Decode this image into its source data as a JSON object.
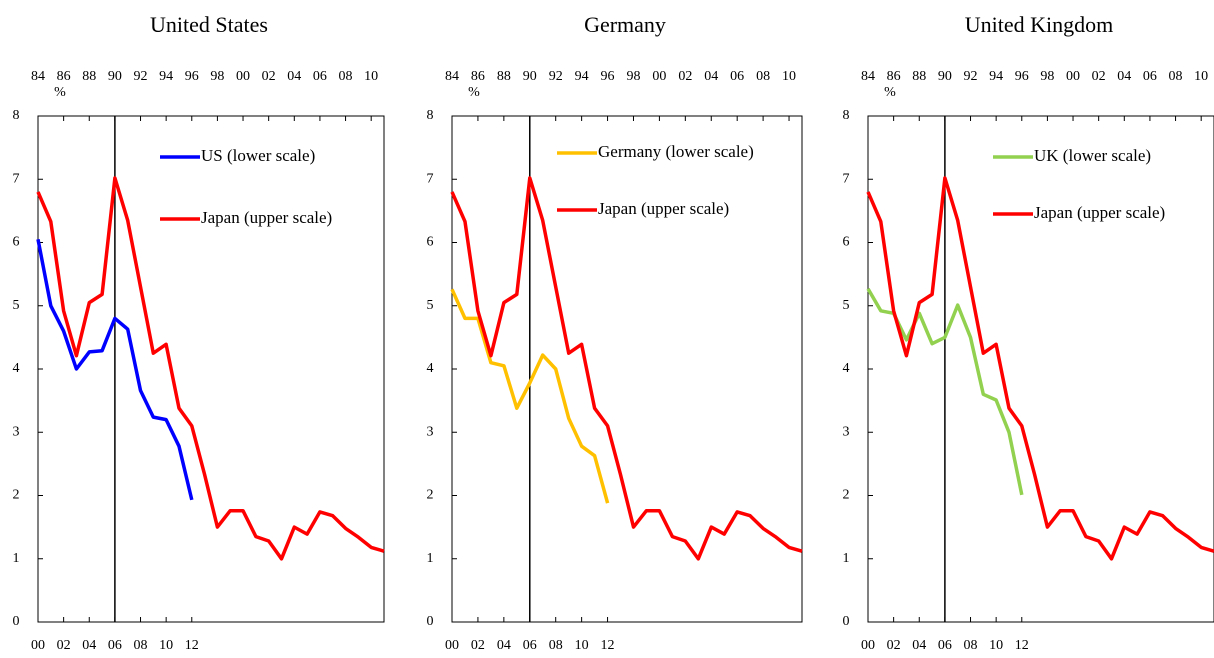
{
  "chart_data": [
    {
      "type": "line",
      "title": "United States",
      "y_unit": "%",
      "ylim": [
        0,
        8
      ],
      "yticks": [
        0,
        1,
        2,
        3,
        4,
        5,
        6,
        7,
        8
      ],
      "xlim": [
        2000,
        2027
      ],
      "xticks": [
        {
          "value": 2000,
          "label": "00"
        },
        {
          "value": 2002,
          "label": "02"
        },
        {
          "value": 2004,
          "label": "04"
        },
        {
          "value": 2006,
          "label": "06"
        },
        {
          "value": 2008,
          "label": "08"
        },
        {
          "value": 2010,
          "label": "10"
        },
        {
          "value": 2012,
          "label": "12"
        }
      ],
      "x2lim": [
        1984,
        2011
      ],
      "x2ticks": [
        {
          "value": 1984,
          "label": "84"
        },
        {
          "value": 1986,
          "label": "86"
        },
        {
          "value": 1988,
          "label": "88"
        },
        {
          "value": 1990,
          "label": "90"
        },
        {
          "value": 1992,
          "label": "92"
        },
        {
          "value": 1994,
          "label": "94"
        },
        {
          "value": 1996,
          "label": "96"
        },
        {
          "value": 1998,
          "label": "98"
        },
        {
          "value": 2000,
          "label": "00"
        },
        {
          "value": 2002,
          "label": "02"
        },
        {
          "value": 2004,
          "label": "04"
        },
        {
          "value": 2006,
          "label": "06"
        },
        {
          "value": 2008,
          "label": "08"
        },
        {
          "value": 2010,
          "label": "10"
        }
      ],
      "marker_line": 1990,
      "series": [
        {
          "name": "US (lower scale)",
          "color": "#0000ff",
          "x": [
            2000,
            2001,
            2002,
            2003,
            2004,
            2005,
            2006,
            2007,
            2008,
            2009,
            2010,
            2011,
            2012
          ],
          "values": [
            6.05,
            5.0,
            4.6,
            4.0,
            4.27,
            4.29,
            4.8,
            4.63,
            3.66,
            3.24,
            3.2,
            2.78,
            1.93
          ]
        },
        {
          "name": "Japan (upper scale)",
          "color": "#ff0000",
          "axis": "x2",
          "x": [
            1984,
            1985,
            1986,
            1987,
            1988,
            1989,
            1990,
            1991,
            1992,
            1993,
            1994,
            1995,
            1996,
            1997,
            1998,
            1999,
            2000,
            2001,
            2002,
            2003,
            2004,
            2005,
            2006,
            2007,
            2008,
            2009,
            2010,
            2011
          ],
          "values": [
            6.8,
            6.33,
            4.92,
            4.21,
            5.05,
            5.18,
            7.02,
            6.35,
            5.3,
            4.25,
            4.39,
            3.38,
            3.1,
            2.33,
            1.5,
            1.76,
            1.76,
            1.35,
            1.28,
            1.0,
            1.5,
            1.39,
            1.74,
            1.68,
            1.48,
            1.34,
            1.18,
            1.12
          ]
        }
      ]
    },
    {
      "type": "line",
      "title": "Germany",
      "y_unit": "%",
      "ylim": [
        0,
        8
      ],
      "yticks": [
        0,
        1,
        2,
        3,
        4,
        5,
        6,
        7,
        8
      ],
      "xlim": [
        2000,
        2027
      ],
      "xticks": [
        {
          "value": 2000,
          "label": "00"
        },
        {
          "value": 2002,
          "label": "02"
        },
        {
          "value": 2004,
          "label": "04"
        },
        {
          "value": 2006,
          "label": "06"
        },
        {
          "value": 2008,
          "label": "08"
        },
        {
          "value": 2010,
          "label": "10"
        },
        {
          "value": 2012,
          "label": "12"
        }
      ],
      "x2lim": [
        1984,
        2011
      ],
      "x2ticks": [
        {
          "value": 1984,
          "label": "84"
        },
        {
          "value": 1986,
          "label": "86"
        },
        {
          "value": 1988,
          "label": "88"
        },
        {
          "value": 1990,
          "label": "90"
        },
        {
          "value": 1992,
          "label": "92"
        },
        {
          "value": 1994,
          "label": "94"
        },
        {
          "value": 1996,
          "label": "96"
        },
        {
          "value": 1998,
          "label": "98"
        },
        {
          "value": 2000,
          "label": "00"
        },
        {
          "value": 2002,
          "label": "02"
        },
        {
          "value": 2004,
          "label": "04"
        },
        {
          "value": 2006,
          "label": "06"
        },
        {
          "value": 2008,
          "label": "08"
        },
        {
          "value": 2010,
          "label": "10"
        }
      ],
      "marker_line": 1990,
      "series": [
        {
          "name": "Germany (lower scale)",
          "color": "#ffc000",
          "x": [
            2000,
            2001,
            2002,
            2003,
            2004,
            2005,
            2006,
            2007,
            2008,
            2009,
            2010,
            2011,
            2012
          ],
          "values": [
            5.26,
            4.8,
            4.8,
            4.1,
            4.05,
            3.38,
            3.78,
            4.22,
            4.0,
            3.22,
            2.78,
            2.63,
            1.88
          ]
        },
        {
          "name": "Japan (upper scale)",
          "color": "#ff0000",
          "axis": "x2",
          "x": [
            1984,
            1985,
            1986,
            1987,
            1988,
            1989,
            1990,
            1991,
            1992,
            1993,
            1994,
            1995,
            1996,
            1997,
            1998,
            1999,
            2000,
            2001,
            2002,
            2003,
            2004,
            2005,
            2006,
            2007,
            2008,
            2009,
            2010,
            2011
          ],
          "values": [
            6.8,
            6.33,
            4.92,
            4.21,
            5.05,
            5.18,
            7.02,
            6.35,
            5.3,
            4.25,
            4.39,
            3.38,
            3.1,
            2.33,
            1.5,
            1.76,
            1.76,
            1.35,
            1.28,
            1.0,
            1.5,
            1.39,
            1.74,
            1.68,
            1.48,
            1.34,
            1.18,
            1.12
          ]
        }
      ]
    },
    {
      "type": "line",
      "title": "United Kingdom",
      "y_unit": "%",
      "ylim": [
        0,
        8
      ],
      "yticks": [
        0,
        1,
        2,
        3,
        4,
        5,
        6,
        7,
        8
      ],
      "xlim": [
        2000,
        2027
      ],
      "xticks": [
        {
          "value": 2000,
          "label": "00"
        },
        {
          "value": 2002,
          "label": "02"
        },
        {
          "value": 2004,
          "label": "04"
        },
        {
          "value": 2006,
          "label": "06"
        },
        {
          "value": 2008,
          "label": "08"
        },
        {
          "value": 2010,
          "label": "10"
        },
        {
          "value": 2012,
          "label": "12"
        }
      ],
      "x2lim": [
        1984,
        2011
      ],
      "x2ticks": [
        {
          "value": 1984,
          "label": "84"
        },
        {
          "value": 1986,
          "label": "86"
        },
        {
          "value": 1988,
          "label": "88"
        },
        {
          "value": 1990,
          "label": "90"
        },
        {
          "value": 1992,
          "label": "92"
        },
        {
          "value": 1994,
          "label": "94"
        },
        {
          "value": 1996,
          "label": "96"
        },
        {
          "value": 1998,
          "label": "98"
        },
        {
          "value": 2000,
          "label": "00"
        },
        {
          "value": 2002,
          "label": "02"
        },
        {
          "value": 2004,
          "label": "04"
        },
        {
          "value": 2006,
          "label": "06"
        },
        {
          "value": 2008,
          "label": "08"
        },
        {
          "value": 2010,
          "label": "10"
        }
      ],
      "marker_line": 1990,
      "series": [
        {
          "name": "UK (lower scale)",
          "color": "#92d050",
          "x": [
            2000,
            2001,
            2002,
            2003,
            2004,
            2005,
            2006,
            2007,
            2008,
            2009,
            2010,
            2011,
            2012
          ],
          "values": [
            5.27,
            4.92,
            4.88,
            4.46,
            4.88,
            4.4,
            4.5,
            5.01,
            4.5,
            3.6,
            3.51,
            3.0,
            2.01
          ]
        },
        {
          "name": "Japan (upper scale)",
          "color": "#ff0000",
          "axis": "x2",
          "x": [
            1984,
            1985,
            1986,
            1987,
            1988,
            1989,
            1990,
            1991,
            1992,
            1993,
            1994,
            1995,
            1996,
            1997,
            1998,
            1999,
            2000,
            2001,
            2002,
            2003,
            2004,
            2005,
            2006,
            2007,
            2008,
            2009,
            2010,
            2011
          ],
          "values": [
            6.8,
            6.33,
            4.92,
            4.21,
            5.05,
            5.18,
            7.02,
            6.35,
            5.3,
            4.25,
            4.39,
            3.38,
            3.1,
            2.33,
            1.5,
            1.76,
            1.76,
            1.35,
            1.28,
            1.0,
            1.5,
            1.39,
            1.74,
            1.68,
            1.48,
            1.34,
            1.18,
            1.12
          ]
        }
      ]
    }
  ]
}
